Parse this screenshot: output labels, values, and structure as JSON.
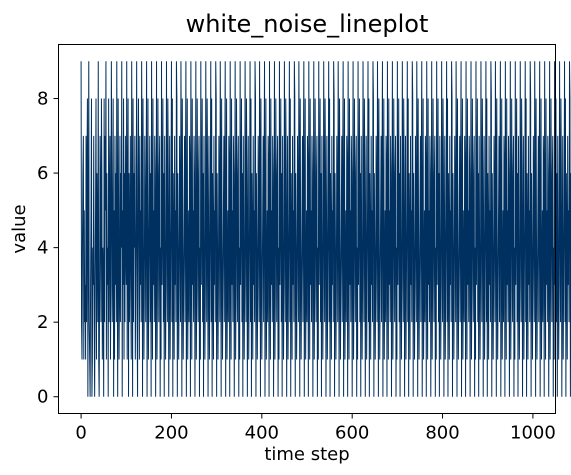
{
  "chart_data": {
    "type": "line",
    "title": "white_noise_lineplot",
    "xlabel": "time step",
    "ylabel": "value",
    "xlim": [
      -50,
      1050
    ],
    "ylim": [
      -0.45,
      9.45
    ],
    "x_ticks": [
      0,
      200,
      400,
      600,
      800,
      1000
    ],
    "y_ticks": [
      0,
      2,
      4,
      6,
      8
    ],
    "x_tick_labels": [
      "0",
      "200",
      "400",
      "600",
      "800",
      "1000"
    ],
    "y_tick_labels": [
      "0",
      "2",
      "4",
      "6",
      "8"
    ],
    "grid": false,
    "line_color": "#00305f",
    "series": [
      {
        "x_start": 0,
        "x_step": 1,
        "values": [
          9,
          2,
          1,
          4,
          6,
          7,
          1,
          5,
          2,
          3,
          1,
          7,
          2,
          6,
          8,
          0,
          4,
          9,
          2,
          1,
          0,
          3,
          5,
          8,
          0,
          1,
          4,
          3,
          7,
          2,
          0,
          3,
          5,
          8,
          1,
          6,
          4,
          2,
          9,
          1,
          0,
          3,
          7,
          5,
          2,
          8,
          6,
          1,
          4,
          3,
          0,
          8,
          2,
          7,
          5,
          9,
          1,
          6,
          3,
          4,
          0,
          8,
          2,
          5,
          7,
          1,
          3,
          9,
          6,
          2,
          4,
          8,
          0,
          5,
          1,
          7,
          3,
          6,
          2,
          9,
          4,
          0,
          8,
          5,
          1,
          3,
          7,
          2,
          6,
          4,
          9,
          0,
          5,
          3,
          8,
          1,
          6,
          2,
          7,
          4,
          3,
          9,
          1,
          5,
          8,
          0,
          6,
          2,
          4,
          7,
          3,
          1,
          9,
          5,
          0,
          8,
          2,
          6,
          4,
          7,
          1,
          3,
          5,
          9,
          2,
          0,
          6,
          8,
          4,
          1,
          7,
          3,
          5,
          2,
          9,
          6,
          0,
          8,
          4,
          1,
          3,
          7,
          5,
          2,
          6,
          9,
          0,
          4,
          8,
          1,
          3,
          5,
          7,
          2,
          6,
          0,
          9,
          4,
          1,
          8,
          3,
          5,
          2,
          7,
          6,
          0,
          4,
          9,
          1,
          3,
          8,
          5,
          2,
          6,
          7,
          0,
          4,
          1,
          9,
          3,
          5,
          8,
          2,
          6,
          0,
          7,
          4,
          1,
          3,
          9,
          5,
          2,
          8,
          6,
          0,
          4,
          7,
          1,
          3,
          5,
          9,
          2,
          8,
          0,
          6,
          4,
          1,
          7,
          3,
          5,
          2,
          9,
          8,
          0,
          6,
          4,
          1,
          3,
          7,
          5,
          2,
          9,
          6,
          0,
          8,
          4,
          1,
          3,
          5,
          7,
          2,
          6,
          9,
          0,
          4,
          8,
          1,
          3,
          5,
          2,
          7,
          6,
          0,
          9,
          4,
          1,
          8,
          3,
          5,
          2,
          7,
          6,
          0,
          4,
          9,
          1,
          3,
          8,
          5,
          2,
          6,
          7,
          0,
          4,
          1,
          9,
          3,
          5,
          8,
          2,
          6,
          0,
          7,
          4,
          1,
          3,
          9,
          5,
          2,
          8,
          6,
          0,
          4,
          7,
          1,
          3,
          5,
          9,
          2,
          8,
          0,
          6,
          4,
          1,
          7,
          3,
          5,
          2,
          9,
          8,
          0,
          6,
          4,
          1,
          3,
          7,
          5,
          2,
          9,
          6,
          0,
          8,
          4,
          1,
          3,
          5,
          7,
          2,
          6,
          9,
          0,
          4,
          8,
          1,
          3,
          5,
          2,
          7,
          6,
          0,
          9,
          4,
          1,
          8,
          3,
          5,
          2,
          7,
          6,
          0,
          4,
          9,
          1,
          3,
          8,
          5,
          2,
          6,
          7,
          0,
          4,
          1,
          9,
          3,
          5,
          8,
          2,
          6,
          0,
          7,
          4,
          1,
          3,
          9,
          5,
          2,
          8,
          6,
          0,
          4,
          7,
          1,
          3,
          5,
          9,
          2,
          8,
          0,
          6,
          4,
          1,
          7,
          3,
          5,
          2,
          9,
          8,
          0,
          6,
          4,
          1,
          3,
          7,
          5,
          2,
          9,
          6,
          0,
          8,
          4,
          1,
          3,
          5,
          7,
          2,
          6,
          9,
          0,
          4,
          8,
          1,
          3,
          5,
          2,
          7,
          6,
          0,
          9,
          4,
          1,
          8,
          3,
          5,
          2,
          7,
          6,
          0,
          4,
          9,
          1,
          3,
          8,
          5,
          2,
          6,
          7,
          0,
          4,
          1,
          9,
          3,
          5,
          8,
          2,
          6,
          0,
          7,
          4,
          1,
          3,
          9,
          5,
          2,
          8,
          6,
          0,
          4,
          7,
          1,
          3,
          5,
          9,
          2,
          8,
          0,
          6,
          4,
          1,
          7,
          3,
          5,
          2,
          9,
          8,
          0,
          6,
          4,
          1,
          3,
          7,
          5,
          2,
          9,
          6,
          0,
          8,
          4,
          1,
          3,
          5,
          7,
          2,
          6,
          9,
          0,
          4,
          8,
          1,
          3,
          5,
          2,
          7,
          6,
          0,
          9,
          4,
          1,
          8,
          3,
          5,
          2,
          7,
          6,
          0,
          4,
          9,
          1,
          3,
          8,
          5,
          2,
          6,
          7,
          0,
          4,
          1,
          9,
          3,
          5,
          8,
          2,
          6,
          0,
          7,
          4,
          1,
          3,
          9,
          5,
          2,
          8,
          6,
          0,
          4,
          7,
          1,
          3,
          5,
          9,
          2,
          8,
          0,
          6,
          4,
          1,
          7,
          3,
          5,
          2,
          9,
          8,
          0,
          6,
          4,
          1,
          3,
          7,
          5,
          2,
          9,
          6,
          0,
          8,
          4,
          1,
          3,
          5,
          7,
          2,
          6,
          9,
          0,
          4,
          8,
          1,
          3,
          5,
          2,
          7,
          6,
          0,
          9,
          4,
          1,
          8,
          3,
          5,
          2,
          7,
          6,
          0,
          4,
          9,
          1,
          3,
          8,
          5,
          2,
          6,
          7,
          0,
          4,
          1,
          9,
          3,
          5,
          8,
          2,
          6,
          0,
          7,
          4,
          1,
          3,
          9,
          5,
          2,
          8,
          6,
          0,
          4,
          7,
          1,
          3,
          5,
          9,
          2,
          8,
          0,
          6,
          4,
          1,
          7,
          3,
          5,
          2,
          9,
          8,
          0,
          6,
          4,
          1,
          3,
          7,
          5,
          2,
          9,
          6,
          0,
          8,
          4,
          1,
          3,
          5,
          7,
          2,
          6,
          9,
          0,
          4,
          8,
          1,
          3,
          5,
          2,
          7,
          6,
          0,
          9,
          4,
          1,
          8,
          3,
          5,
          2,
          7,
          6,
          0,
          4,
          9,
          1,
          3,
          8,
          5,
          2,
          6,
          7,
          0,
          4,
          1,
          9,
          3,
          5,
          8,
          2,
          6,
          0,
          7,
          4,
          1,
          3,
          9,
          5,
          2,
          8,
          6,
          0,
          4,
          7,
          1,
          3,
          5,
          9,
          2,
          8,
          0,
          6,
          4,
          1,
          7,
          3,
          5,
          2,
          9,
          8,
          0,
          6,
          4,
          1,
          3,
          7,
          5,
          2,
          9,
          6,
          0,
          8,
          4,
          1,
          3,
          5,
          7,
          2,
          6,
          9,
          0,
          4,
          8,
          1,
          3,
          5,
          2,
          7,
          6,
          0,
          9,
          4,
          1,
          8,
          3,
          5,
          2,
          7,
          6,
          0,
          4,
          9,
          1,
          3,
          8,
          5,
          2,
          6,
          7,
          0,
          4,
          1,
          9,
          3,
          5,
          8,
          2,
          6,
          0,
          7,
          4,
          1,
          3,
          9,
          5,
          2,
          8,
          6,
          0,
          4,
          7,
          1,
          3,
          5,
          9,
          2,
          8,
          0,
          6,
          4,
          1,
          7,
          3,
          5,
          2,
          9,
          8,
          0,
          6,
          4,
          1,
          3,
          7,
          5,
          2,
          9,
          6,
          0,
          8,
          4,
          1,
          3,
          5,
          7,
          2,
          6,
          9,
          0,
          4,
          8,
          1,
          3,
          5,
          2,
          7,
          6,
          0,
          9,
          4,
          1,
          8,
          3,
          5,
          2,
          7,
          6,
          0,
          4,
          9,
          1,
          3,
          8,
          5,
          2,
          6,
          7,
          0,
          4,
          1,
          9,
          3,
          5,
          8,
          2,
          6,
          0,
          7,
          4,
          1,
          3,
          9,
          5,
          2,
          8,
          6,
          0,
          4,
          7,
          1,
          3,
          5,
          9,
          2,
          8,
          0,
          6,
          4,
          1,
          7,
          3,
          5,
          2,
          9,
          8,
          0,
          6,
          4,
          1,
          3,
          7,
          5,
          2,
          9,
          6,
          0,
          8,
          4,
          1,
          3,
          5,
          7,
          2,
          6,
          9,
          0,
          4,
          8,
          1,
          3,
          5,
          2,
          7,
          6,
          0,
          9,
          4,
          1,
          8,
          3,
          5,
          2,
          7,
          6,
          0,
          4,
          9,
          1,
          3,
          8,
          5,
          2,
          6,
          7,
          0,
          4,
          1,
          9,
          3,
          5,
          8,
          2,
          6,
          0,
          7,
          4,
          1,
          3,
          9,
          5,
          2,
          8,
          6,
          0,
          4,
          7,
          1,
          3,
          5,
          9,
          2,
          8,
          0,
          6,
          4,
          1,
          7,
          3,
          5,
          2,
          9,
          8,
          0,
          6,
          4,
          1,
          3,
          7,
          5,
          2,
          9,
          6,
          0,
          8,
          4,
          1,
          3,
          5,
          7,
          2,
          6,
          9,
          0,
          4,
          8,
          1,
          3,
          5,
          2,
          7,
          6,
          0,
          9,
          4,
          1,
          8,
          3,
          5,
          2,
          7,
          6,
          0,
          4,
          9,
          1,
          3,
          8,
          5,
          2,
          6,
          7,
          0,
          4,
          1,
          9,
          3,
          5,
          8,
          2,
          6,
          0,
          7,
          4,
          1,
          3,
          9,
          5,
          2,
          8,
          6,
          0,
          4,
          7,
          1,
          3,
          5,
          9,
          2,
          8,
          0,
          6,
          4,
          1,
          7,
          3,
          5,
          2,
          9,
          8,
          0,
          6,
          4,
          1,
          3,
          7,
          5,
          2,
          9,
          6,
          0,
          8,
          4,
          1,
          3,
          5,
          7,
          2,
          6,
          9,
          0,
          4,
          8,
          1,
          3,
          5,
          2,
          7,
          6,
          0,
          9,
          4,
          1,
          8,
          3,
          5,
          2,
          7,
          6,
          0,
          4,
          9,
          1,
          3,
          8,
          5,
          2,
          6,
          7,
          0,
          4,
          1,
          9,
          3,
          5,
          8,
          7,
          7
        ]
      }
    ]
  }
}
